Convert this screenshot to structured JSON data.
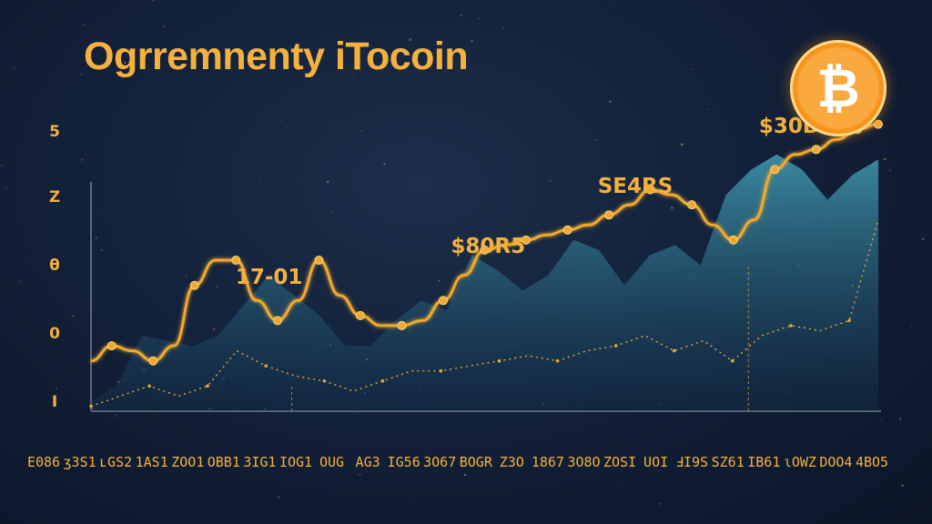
{
  "chart_data": {
    "type": "line",
    "title": "Ogrremnenty iTocoin",
    "y_tick_labels": [
      "5",
      "Z",
      "θ",
      "0",
      "I"
    ],
    "x_tick_labels": [
      "E086",
      "ʒ3S1",
      "ʟGS2",
      "1AS1",
      "ZOO1",
      "OBB1",
      "3IG1",
      "IOG1",
      "OUG",
      "AG3",
      "IG56",
      "3O67",
      "BOGR",
      "Z3O",
      "1867",
      "3O8O",
      "ZOSI",
      "UOI",
      "ℲI9S",
      "SZ61",
      "IB61",
      "ɩOWZ",
      "DOO4",
      "4BO5"
    ],
    "annotations": [
      {
        "text": "17-01",
        "x_index": 5.2
      },
      {
        "text": "$80R5",
        "x_index": 11.6
      },
      {
        "text": "SE4RS",
        "x_index": 15.9
      },
      {
        "text": "$30B5",
        "x_index": 20.6
      }
    ],
    "series": [
      {
        "values": [
          1.0,
          1.3,
          1.2,
          1.0,
          1.3,
          2.5,
          3.0,
          3.0,
          2.2,
          1.8,
          2.2,
          3.0,
          2.3,
          1.9,
          1.7,
          1.7,
          1.8,
          2.2,
          2.7,
          3.2,
          3.3,
          3.4,
          3.5,
          3.6,
          3.7,
          3.9,
          4.1,
          4.4,
          4.3,
          4.1,
          3.7,
          3.4,
          3.8,
          4.8,
          5.1,
          5.2,
          5.4,
          5.6,
          5.7
        ]
      },
      {
        "values": [
          0.2,
          0.5,
          1.5,
          1.4,
          1.3,
          1.5,
          2.1,
          2.7,
          2.3,
          1.9,
          1.3,
          1.3,
          1.8,
          2.2,
          2.0,
          3.1,
          2.8,
          2.4,
          2.7,
          3.4,
          3.2,
          2.5,
          3.1,
          3.3,
          2.9,
          4.3,
          4.8,
          5.1,
          4.8,
          4.2,
          4.7,
          5.0
        ]
      },
      {
        "values": [
          0.1,
          0.3,
          0.5,
          0.3,
          0.5,
          1.2,
          0.9,
          0.7,
          0.6,
          0.4,
          0.6,
          0.8,
          0.8,
          0.9,
          1.0,
          1.1,
          1.0,
          1.2,
          1.3,
          1.5,
          1.2,
          1.4,
          1.0,
          1.5,
          1.7,
          1.6,
          1.8,
          3.8
        ]
      }
    ]
  },
  "coin": {
    "symbol": "₿"
  },
  "colors": {
    "accent": "#f4b13e",
    "line": "#f0a92e",
    "dots": "#e3a73b",
    "area_top": "#3c8fa6",
    "area_bottom": "#14334e",
    "axis": "#8d97a8",
    "coin_outer": "#f7931a",
    "coin_inner": "#f9a93d"
  }
}
